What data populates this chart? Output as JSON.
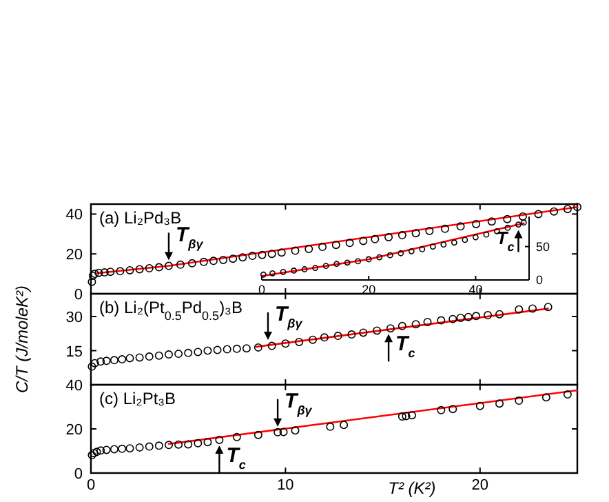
{
  "chart_data": [
    {
      "type": "scatter",
      "title": "(a) Li₂Pd₃B",
      "xlim": [
        0,
        25
      ],
      "xticks": [
        0,
        10,
        20
      ],
      "ylim": [
        0,
        45
      ],
      "yticks": [
        0,
        20,
        40
      ],
      "tick_labels": "y",
      "marker": "circle",
      "series": [
        {
          "type": "scatter",
          "color": "#000000",
          "x": [
            0.05,
            0.1,
            0.2,
            0.4,
            0.7,
            1.0,
            1.5,
            2.0,
            2.5,
            3.0,
            3.5,
            4.0,
            4.6,
            5.2,
            5.8,
            6.3,
            6.8,
            7.3,
            7.8,
            8.3,
            8.8,
            9.3,
            9.8,
            10.5,
            11.2,
            11.9,
            12.6,
            13.3,
            14.0,
            14.6,
            15.3,
            16.0,
            16.7,
            17.4,
            18.2,
            19.0,
            19.8,
            20.6,
            21.4,
            22.2,
            23.0,
            23.8,
            24.5,
            25.0
          ],
          "values": [
            6,
            9,
            10,
            10.5,
            10.7,
            11,
            11.3,
            11.8,
            12.3,
            12.8,
            13.3,
            14,
            14.6,
            15.3,
            16,
            16.5,
            17,
            17.6,
            18.3,
            19,
            19.5,
            20,
            20.7,
            21.6,
            22.5,
            23.5,
            24.5,
            25.5,
            26.5,
            27.4,
            28.4,
            29.4,
            30.4,
            31.5,
            32.6,
            33.8,
            35,
            36.3,
            37.5,
            38.8,
            40,
            41.3,
            42.5,
            43.5
          ]
        },
        {
          "type": "line",
          "color": "#ff0000",
          "marker": "none",
          "x": [
            0.3,
            4,
            25
          ],
          "values": [
            10.3,
            14,
            43.5
          ]
        }
      ],
      "annotations": [
        {
          "text": "T$_{βγ}$",
          "x": 4,
          "y": 14
        }
      ]
    },
    {
      "type": "scatter",
      "xlim": [
        0,
        50
      ],
      "xticks": [
        0,
        20,
        40
      ],
      "ylim": [
        0,
        95
      ],
      "yticks": [
        0,
        50
      ],
      "marker": "circle",
      "series": [
        {
          "type": "scatter",
          "color": "#000000",
          "x": [
            0.3,
            2,
            4,
            6,
            8,
            10,
            12,
            14,
            16,
            18,
            20,
            22,
            24,
            26,
            28,
            30,
            32,
            34,
            36,
            38,
            40,
            42,
            44,
            46,
            48,
            49
          ],
          "values": [
            8,
            10,
            12,
            14,
            16,
            18,
            21,
            24,
            26,
            28,
            31,
            34,
            37,
            40,
            43,
            46,
            50,
            53,
            56,
            60,
            64,
            68,
            73,
            78,
            83,
            86
          ]
        },
        {
          "type": "line",
          "color": "#ff0000",
          "marker": "none",
          "x": [
            0,
            20,
            49
          ],
          "values": [
            6,
            31,
            85
          ]
        }
      ],
      "annotations": [
        {
          "text": "T$_{c}$",
          "x": 48,
          "y": 83
        }
      ]
    },
    {
      "type": "scatter",
      "title": "(b) Li₂(Pt$_{0.5}$Pd$_{0.5}$)₃B",
      "ylabel": "C/T (J/moleK²)",
      "xlim": [
        0,
        25
      ],
      "xticks": [
        0,
        10,
        20
      ],
      "ylim": [
        0,
        40
      ],
      "yticks": [
        15,
        30
      ],
      "tick_labels": "y",
      "marker": "circle",
      "series": [
        {
          "type": "scatter",
          "color": "#000000",
          "x": [
            0.05,
            0.2,
            0.5,
            0.8,
            1.2,
            1.6,
            2.0,
            2.5,
            3.0,
            3.5,
            4.0,
            4.5,
            5.0,
            5.5,
            6.0,
            6.5,
            7.0,
            7.5,
            8.0,
            8.6,
            9.3,
            10.0,
            10.7,
            11.4,
            12.0,
            12.7,
            13.4,
            14.0,
            14.7,
            15.4,
            16.0,
            16.7,
            17.3,
            18.0,
            18.6,
            19.0,
            19.4,
            19.8,
            20.4,
            21.0,
            22.0,
            22.7,
            23.5
          ],
          "values": [
            8,
            9.5,
            10.2,
            10.5,
            10.8,
            11.2,
            11.7,
            12.0,
            12.4,
            12.8,
            13.3,
            13.6,
            14.0,
            14.4,
            15.0,
            15.3,
            15.6,
            15.8,
            16.0,
            16.4,
            17.1,
            18.1,
            18.8,
            19.8,
            20.8,
            21.5,
            22.1,
            22.9,
            23.8,
            24.8,
            25.8,
            26.6,
            27.6,
            28.3,
            28.9,
            29.4,
            29.8,
            30.2,
            30.6,
            31.0,
            33.1,
            33.5,
            34.2
          ]
        },
        {
          "type": "line",
          "color": "#ff0000",
          "marker": "none",
          "x": [
            8.5,
            23.5
          ],
          "values": [
            16.7,
            33.5
          ]
        }
      ],
      "annotations": [
        {
          "text": "T$_{βγ}$",
          "x": 9.1,
          "y": 17.3
        },
        {
          "text": "T$_{c}$",
          "x": 15.3,
          "y": 24.8
        }
      ]
    },
    {
      "type": "scatter",
      "title": "(c) Li₂Pt₃B",
      "xlabel": "T² (K²)",
      "xlim": [
        0,
        25
      ],
      "xticks": [
        0,
        10,
        20
      ],
      "ylim": [
        0,
        40
      ],
      "yticks": [
        0,
        20,
        40
      ],
      "marker": "circle",
      "series": [
        {
          "type": "scatter",
          "color": "#000000",
          "x": [
            0.05,
            0.15,
            0.3,
            0.5,
            0.8,
            1.2,
            1.6,
            2.0,
            2.5,
            3.0,
            3.5,
            4.0,
            4.5,
            5.0,
            5.5,
            6.0,
            6.6,
            7.5,
            8.6,
            9.6,
            9.9,
            10.5,
            12.3,
            13.0,
            16.0,
            16.2,
            16.5,
            18.0,
            18.6,
            20.0,
            21.0,
            22.0,
            23.4,
            24.5
          ],
          "values": [
            8.1,
            9.0,
            9.6,
            10.2,
            10.5,
            10.8,
            11.0,
            11.2,
            11.6,
            12.0,
            12.4,
            12.7,
            12.9,
            13.0,
            13.5,
            14.0,
            15.0,
            16.3,
            17.3,
            18.5,
            18.6,
            19.3,
            21.0,
            21.8,
            25.6,
            25.8,
            26.2,
            28.5,
            29.0,
            30.4,
            31.5,
            32.8,
            34.3,
            35.6
          ]
        },
        {
          "type": "line",
          "color": "#ff0000",
          "marker": "none",
          "x": [
            4,
            25
          ],
          "values": [
            13.2,
            37.5
          ]
        }
      ],
      "annotations": [
        {
          "text": "T$_{βγ}$",
          "x": 9.6,
          "y": 18.5
        },
        {
          "text": "T$_{c}$",
          "x": 6.6,
          "y": 15
        }
      ]
    }
  ]
}
